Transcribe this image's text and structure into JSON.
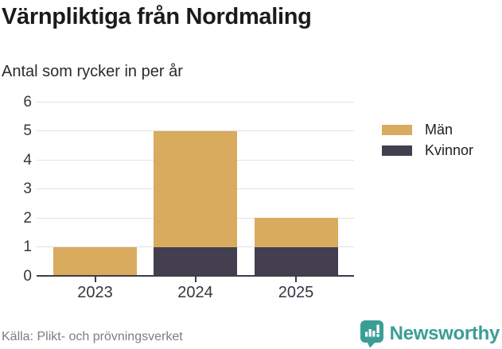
{
  "header": {
    "title": "Värnpliktiga från Nordmaling",
    "subtitle": "Antal som rycker in per år"
  },
  "chart_data": {
    "type": "bar",
    "stacked": true,
    "title": "Värnpliktiga från Nordmaling",
    "subtitle": "Antal som rycker in per år",
    "categories": [
      "2023",
      "2024",
      "2025"
    ],
    "series": [
      {
        "name": "Män",
        "color": "#d8ab5e",
        "values": [
          1,
          4,
          1
        ]
      },
      {
        "name": "Kvinnor",
        "color": "#433f4e",
        "values": [
          0,
          1,
          1
        ]
      }
    ],
    "totals": [
      1,
      5,
      2
    ],
    "xlabel": "",
    "ylabel": "",
    "ylim": [
      0,
      6
    ],
    "yticks": [
      0,
      1,
      2,
      3,
      4,
      5,
      6
    ],
    "grid": true,
    "legend_position": "right"
  },
  "footer": {
    "source": "Källa: Plikt- och prövningsverket",
    "brand": "Newsworthy"
  },
  "colors": {
    "accent_teal": "#3a9e97",
    "bar_men": "#d8ab5e",
    "bar_women": "#433f4e",
    "gridline": "#e1e1e3",
    "axis": "#3f3c49",
    "source_text": "#7c7c85"
  },
  "icons": {
    "brand_icon": "newsworthy-speech-bubble-chart-icon"
  }
}
